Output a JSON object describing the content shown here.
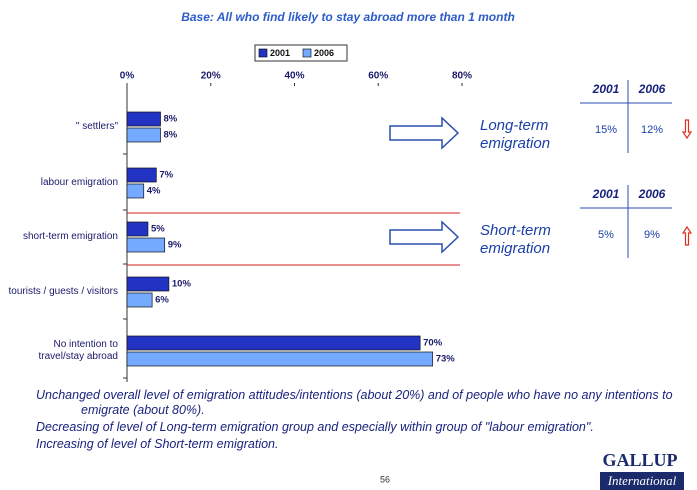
{
  "chart_data": {
    "type": "hbar",
    "subtitle": "Base: All who find likely to stay abroad more than 1 month",
    "categories": [
      "\" settlers\"",
      "labour emigration",
      "short-term emigration",
      "tourists / guests / visitors",
      "No intention to travel/stay abroad"
    ],
    "series": [
      {
        "name": "2001",
        "color": "#2233c4",
        "values": [
          8,
          7,
          5,
          10,
          70
        ],
        "value_labels": [
          "8%",
          "7%",
          "5%",
          "10%",
          "70%"
        ]
      },
      {
        "name": "2006",
        "color": "#74aaff",
        "values": [
          8,
          4,
          9,
          6,
          73
        ],
        "value_labels": [
          "8%",
          "4%",
          "9%",
          "6%",
          "73%"
        ]
      }
    ],
    "xlim": [
      0,
      80
    ],
    "xticks": [
      {
        "value": 0,
        "label": "0%"
      },
      {
        "value": 20,
        "label": "20%"
      },
      {
        "value": 40,
        "label": "40%"
      },
      {
        "value": 60,
        "label": "60%"
      },
      {
        "value": 80,
        "label": "80%"
      }
    ],
    "legend": "top"
  },
  "side_panels": [
    {
      "label": "Long-term emigration",
      "headers": [
        "2001",
        "2006"
      ],
      "cells": [
        "15%",
        "12%"
      ],
      "trend": "down"
    },
    {
      "label": "Short-term emigration",
      "headers": [
        "2001",
        "2006"
      ],
      "cells": [
        "5%",
        "9%"
      ],
      "trend": "up"
    }
  ],
  "notes": [
    "Unchanged overall level of emigration attitudes/intentions (about 20%) and of people who have no any intentions to emigrate (about 80%).",
    "Decreasing of level of Long-term emigration group and especially within group of \"labour emigration\".",
    "Increasing of level of Short-term emigration."
  ],
  "page_number": "56",
  "logo": {
    "name": "GALLUP",
    "sub": "International"
  }
}
